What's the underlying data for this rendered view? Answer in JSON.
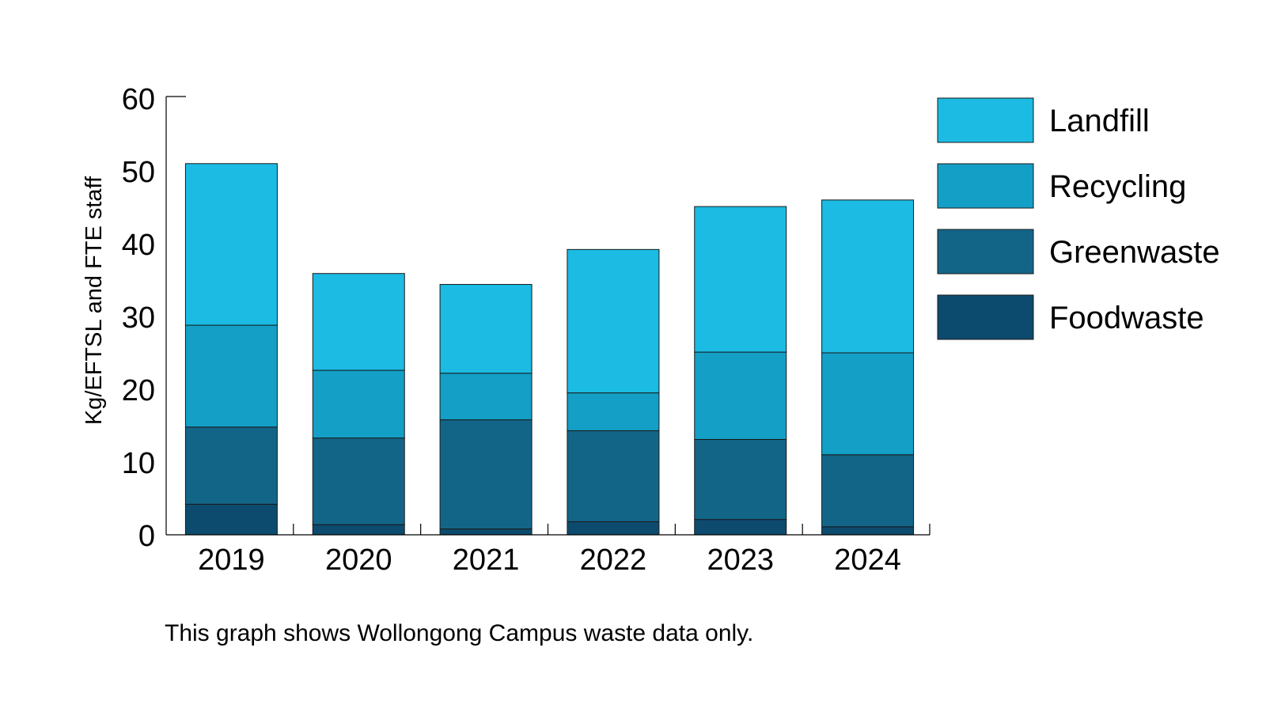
{
  "chart_data": {
    "type": "bar",
    "stacked": true,
    "categories": [
      "2019",
      "2020",
      "2021",
      "2022",
      "2023",
      "2024"
    ],
    "ylabel": "Kg/EFTSL and FTE staff",
    "xlabel": "",
    "ylim": [
      0,
      60
    ],
    "yticks": [
      0,
      10,
      20,
      30,
      40,
      50,
      60
    ],
    "grid": false,
    "legend_position": "right",
    "series": [
      {
        "name": "Foodwaste",
        "color": "#0d4b6e",
        "values": [
          4.2,
          1.4,
          0.8,
          1.8,
          2.1,
          1.1
        ]
      },
      {
        "name": "Greenwaste",
        "color": "#136588",
        "values": [
          10.6,
          11.9,
          15.0,
          12.5,
          11.0,
          9.9
        ]
      },
      {
        "name": "Recycling",
        "color": "#139fc6",
        "values": [
          14.0,
          9.3,
          6.4,
          5.2,
          12.0,
          14.0
        ]
      },
      {
        "name": "Landfill",
        "color": "#1bbbe3",
        "values": [
          22.2,
          13.3,
          12.2,
          19.7,
          20.0,
          21.0
        ]
      }
    ],
    "legend_order": [
      "Landfill",
      "Recycling",
      "Greenwaste",
      "Foodwaste"
    ],
    "caption": "This graph shows Wollongong Campus waste data only."
  }
}
